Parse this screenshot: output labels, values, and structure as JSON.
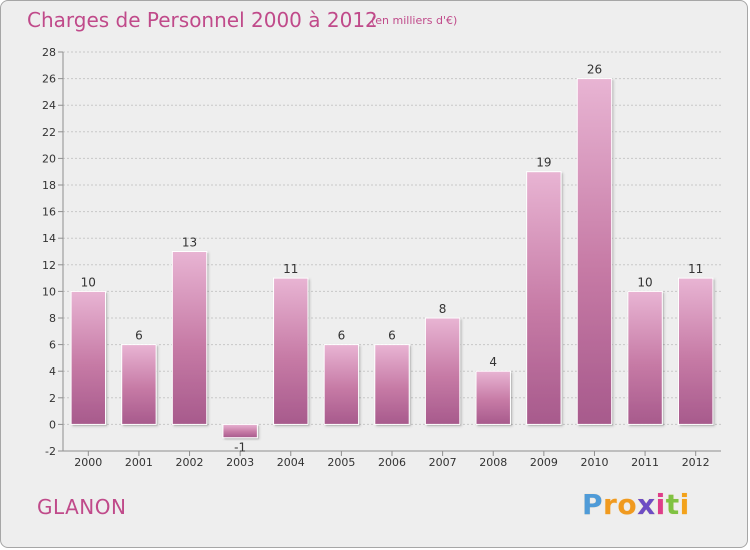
{
  "header": {
    "title": "Charges de Personnel 2000 à 2012",
    "subtitle": "(en milliers d'€)"
  },
  "footer": {
    "location": "GLANON",
    "logo": "Proxiti"
  },
  "colors": {
    "bar": "#c67aa5",
    "bar_dark": "#a75a8c",
    "bar_light": "#e8b4d3",
    "axis": "#8f8f8f",
    "grid": "#c8c8c8",
    "text": "#333333",
    "title": "#c04a8a"
  },
  "chart_data": {
    "type": "bar",
    "title": "Charges de Personnel 2000 à 2012",
    "subtitle": "(en milliers d'€)",
    "categories": [
      "2000",
      "2001",
      "2002",
      "2003",
      "2004",
      "2005",
      "2006",
      "2007",
      "2008",
      "2009",
      "2010",
      "2011",
      "2012"
    ],
    "values": [
      10,
      6,
      13,
      -1,
      11,
      6,
      6,
      8,
      4,
      19,
      26,
      10,
      11
    ],
    "ylim": [
      -2,
      28
    ],
    "yticks": [
      -2,
      0,
      2,
      4,
      6,
      8,
      10,
      12,
      14,
      16,
      18,
      20,
      22,
      24,
      26,
      28
    ],
    "grid": true,
    "legend": "none"
  }
}
